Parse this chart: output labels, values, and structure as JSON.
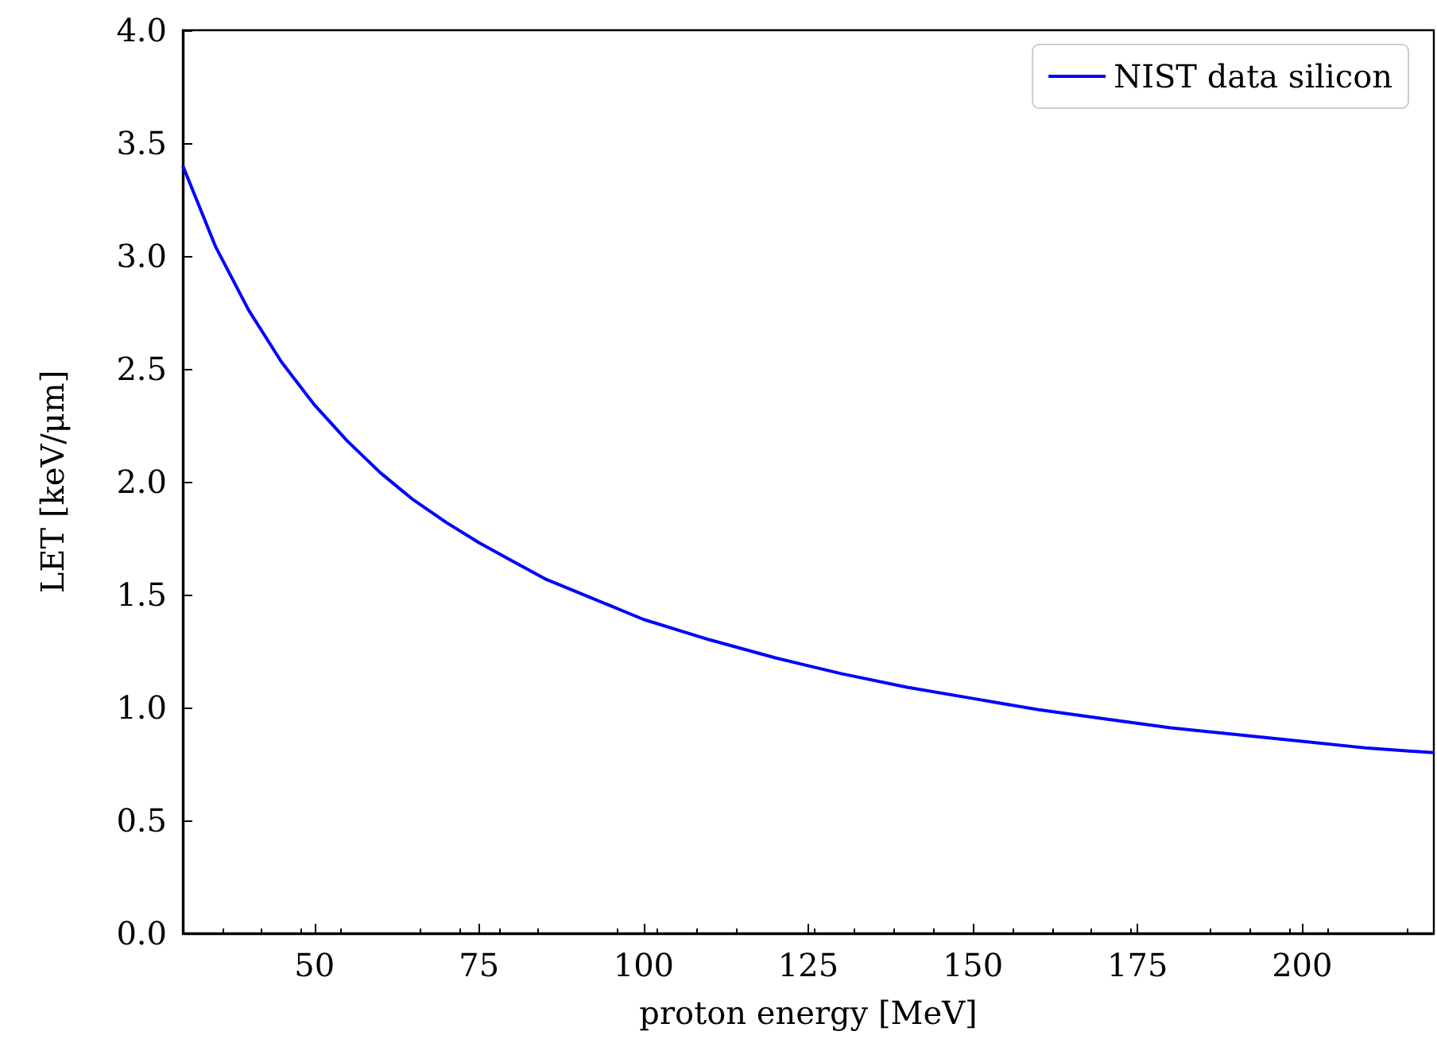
{
  "chart_data": {
    "type": "line",
    "xlabel": "proton energy [MeV]",
    "ylabel": "LET [keV/μm]",
    "x": [
      30,
      35,
      40,
      45,
      50,
      55,
      60,
      65,
      70,
      75,
      80,
      85,
      90,
      95,
      100,
      110,
      120,
      130,
      140,
      150,
      160,
      170,
      180,
      190,
      200,
      210,
      220
    ],
    "series": [
      {
        "name": "NIST data silicon",
        "color": "#0000ff",
        "values": [
          3.4,
          3.04,
          2.76,
          2.53,
          2.34,
          2.18,
          2.04,
          1.92,
          1.82,
          1.73,
          1.65,
          1.57,
          1.51,
          1.45,
          1.39,
          1.3,
          1.22,
          1.15,
          1.09,
          1.04,
          0.99,
          0.95,
          0.91,
          0.88,
          0.85,
          0.82,
          0.8
        ]
      }
    ],
    "xlim": [
      30,
      220
    ],
    "xticks": [
      50,
      75,
      100,
      125,
      150,
      175,
      200
    ],
    "ylim": [
      0,
      4
    ],
    "yticks": [
      {
        "value": 0,
        "label": "0.0"
      },
      {
        "value": 0.5,
        "label": "0.5"
      },
      {
        "value": 1,
        "label": "1.0"
      },
      {
        "value": 1.5,
        "label": "1.5"
      },
      {
        "value": 2,
        "label": "2.0"
      },
      {
        "value": 2.5,
        "label": "2.5"
      },
      {
        "value": 3,
        "label": "3.0"
      },
      {
        "value": 3.5,
        "label": "3.5"
      },
      {
        "value": 4,
        "label": "4.0"
      }
    ],
    "grid": false,
    "legend": "top right",
    "marker": "none",
    "line_style": "solid"
  }
}
